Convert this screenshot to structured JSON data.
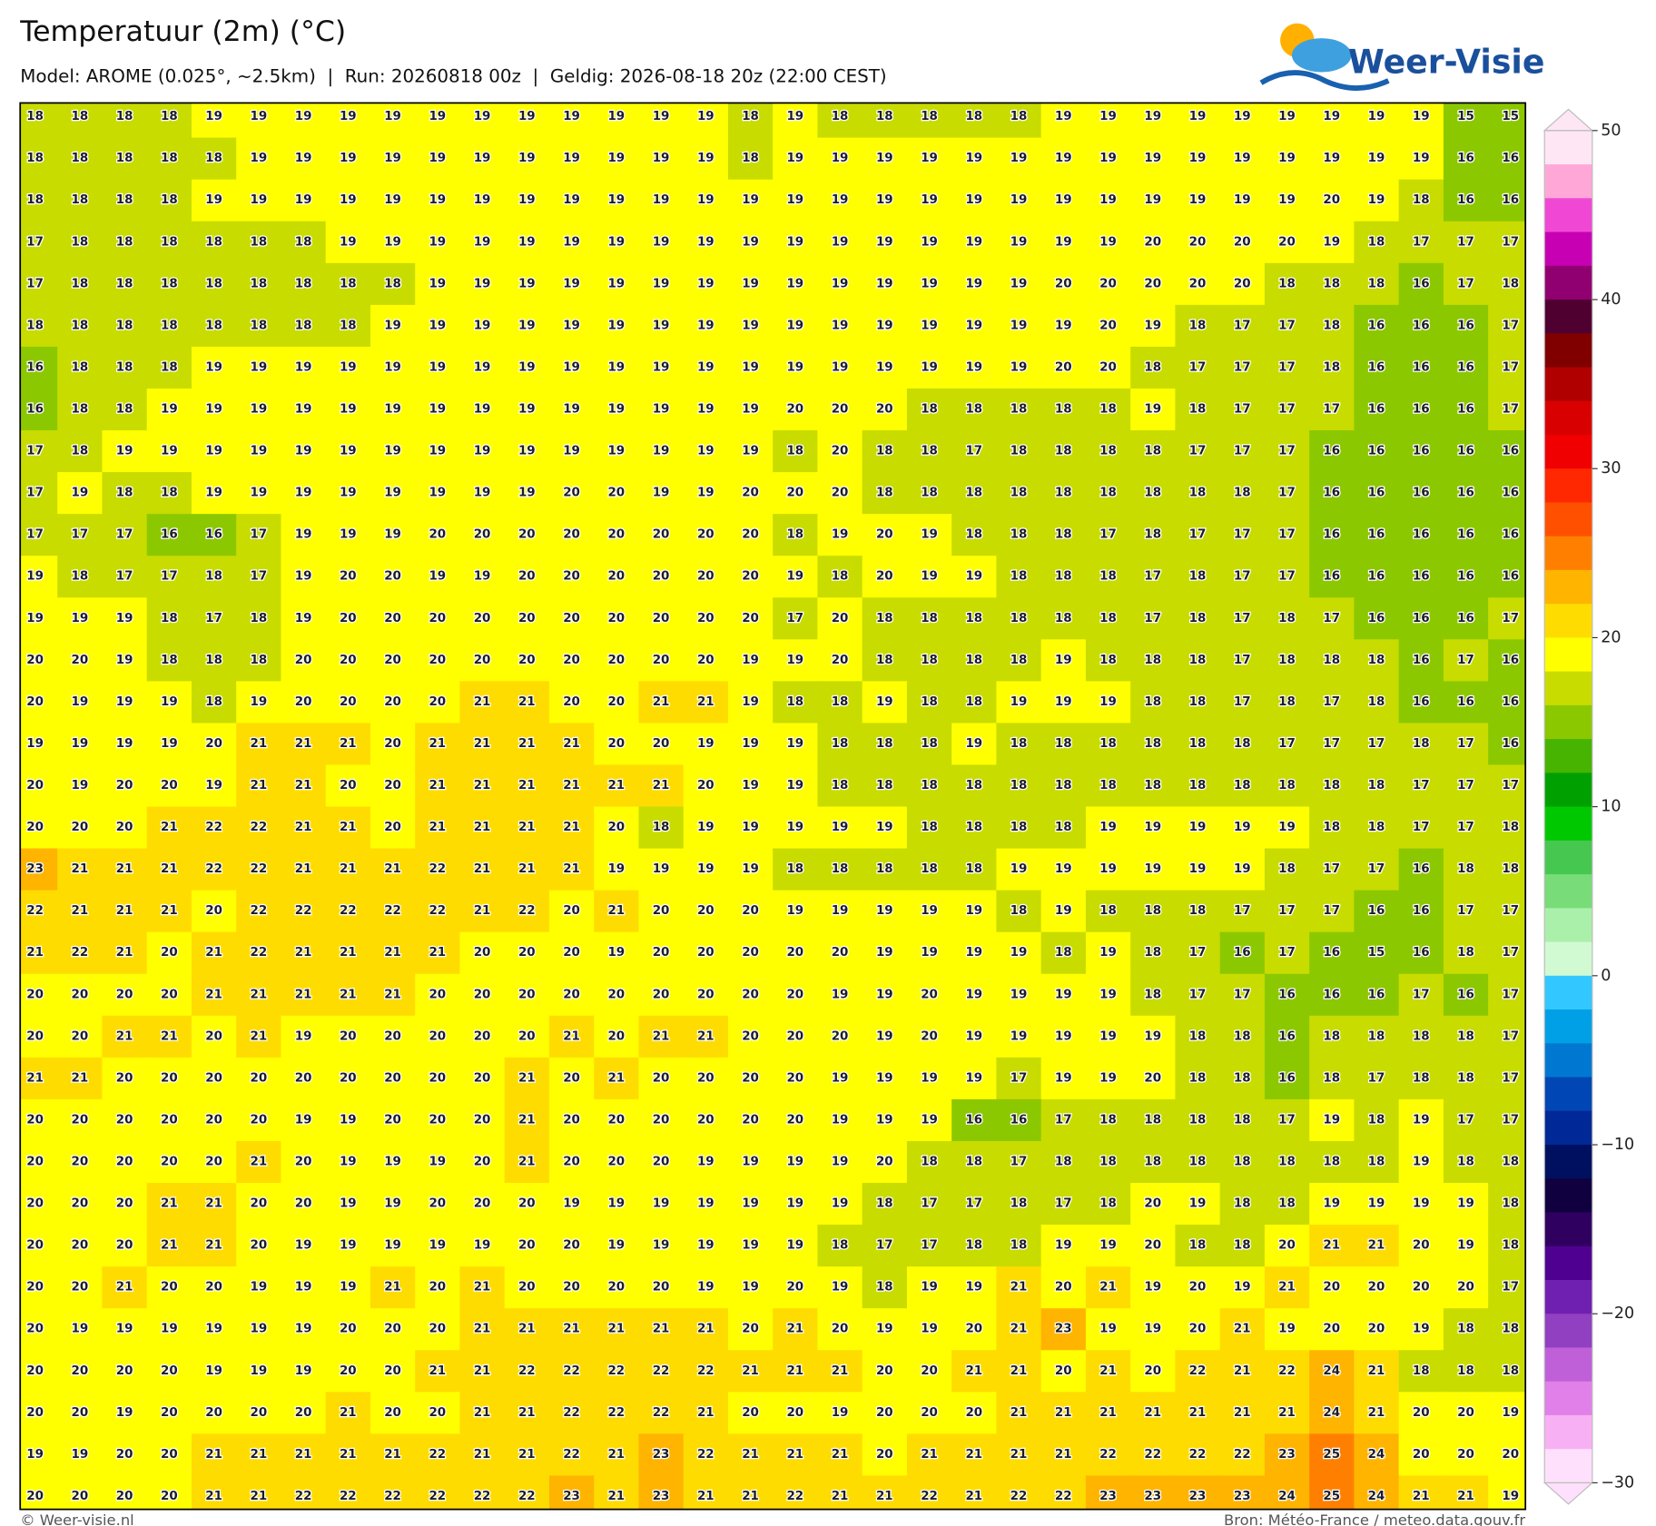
{
  "map": {
    "title": "Temperatuur (2m) (°C)",
    "subtitle": "Model: AROME (0.025°, ~2.5km)  |  Run: 20260818 00z  |  Geldig: 2026-08-18 20z (22:00 CEST)",
    "logo": "Weer-Visie",
    "footer_left": "© Weer-visie.nl",
    "footer_right": "Bron: Météo-France / meteo.data.gouv.fr",
    "grid": [
      [
        18,
        18,
        18,
        18,
        19,
        19,
        19,
        19,
        19,
        19,
        19,
        19,
        19,
        19,
        19,
        19,
        18,
        19,
        18,
        18,
        18,
        18,
        18,
        19,
        19,
        19,
        19,
        19,
        19,
        19,
        19,
        19,
        15,
        15
      ],
      [
        18,
        18,
        18,
        18,
        18,
        19,
        19,
        19,
        19,
        19,
        19,
        19,
        19,
        19,
        19,
        19,
        18,
        19,
        19,
        19,
        19,
        19,
        19,
        19,
        19,
        19,
        19,
        19,
        19,
        19,
        19,
        19,
        16,
        16
      ],
      [
        18,
        18,
        18,
        18,
        19,
        19,
        19,
        19,
        19,
        19,
        19,
        19,
        19,
        19,
        19,
        19,
        19,
        19,
        19,
        19,
        19,
        19,
        19,
        19,
        19,
        19,
        19,
        19,
        19,
        20,
        19,
        18,
        16,
        16
      ],
      [
        17,
        18,
        18,
        18,
        18,
        18,
        18,
        19,
        19,
        19,
        19,
        19,
        19,
        19,
        19,
        19,
        19,
        19,
        19,
        19,
        19,
        19,
        19,
        19,
        19,
        20,
        20,
        20,
        20,
        19,
        18,
        17,
        17,
        17
      ],
      [
        17,
        18,
        18,
        18,
        18,
        18,
        18,
        18,
        18,
        19,
        19,
        19,
        19,
        19,
        19,
        19,
        19,
        19,
        19,
        19,
        19,
        19,
        19,
        20,
        20,
        20,
        20,
        20,
        18,
        18,
        18,
        16,
        17,
        18
      ],
      [
        18,
        18,
        18,
        18,
        18,
        18,
        18,
        18,
        19,
        19,
        19,
        19,
        19,
        19,
        19,
        19,
        19,
        19,
        19,
        19,
        19,
        19,
        19,
        19,
        20,
        19,
        18,
        17,
        17,
        18,
        16,
        16,
        16,
        17
      ],
      [
        16,
        18,
        18,
        18,
        19,
        19,
        19,
        19,
        19,
        19,
        19,
        19,
        19,
        19,
        19,
        19,
        19,
        19,
        19,
        19,
        19,
        19,
        19,
        20,
        20,
        18,
        17,
        17,
        17,
        18,
        16,
        16,
        16,
        17
      ],
      [
        16,
        18,
        18,
        19,
        19,
        19,
        19,
        19,
        19,
        19,
        19,
        19,
        19,
        19,
        19,
        19,
        19,
        20,
        20,
        20,
        18,
        18,
        18,
        18,
        18,
        19,
        18,
        17,
        17,
        17,
        16,
        16,
        16,
        17
      ],
      [
        17,
        18,
        19,
        19,
        19,
        19,
        19,
        19,
        19,
        19,
        19,
        19,
        19,
        19,
        19,
        19,
        19,
        18,
        20,
        18,
        18,
        17,
        18,
        18,
        18,
        18,
        17,
        17,
        17,
        16,
        16,
        16,
        16,
        16
      ],
      [
        17,
        19,
        18,
        18,
        19,
        19,
        19,
        19,
        19,
        19,
        19,
        19,
        20,
        20,
        19,
        19,
        20,
        20,
        20,
        18,
        18,
        18,
        18,
        18,
        18,
        18,
        18,
        18,
        17,
        16,
        16,
        16,
        16,
        16
      ],
      [
        17,
        17,
        17,
        16,
        16,
        17,
        19,
        19,
        19,
        20,
        20,
        20,
        20,
        20,
        20,
        20,
        20,
        18,
        19,
        20,
        19,
        18,
        18,
        18,
        17,
        18,
        17,
        17,
        17,
        16,
        16,
        16,
        16,
        16
      ],
      [
        19,
        18,
        17,
        17,
        18,
        17,
        19,
        20,
        20,
        19,
        19,
        20,
        20,
        20,
        20,
        20,
        20,
        19,
        18,
        20,
        19,
        19,
        18,
        18,
        18,
        17,
        18,
        17,
        17,
        16,
        16,
        16,
        16,
        16
      ],
      [
        19,
        19,
        19,
        18,
        17,
        18,
        19,
        20,
        20,
        20,
        20,
        20,
        20,
        20,
        20,
        20,
        20,
        17,
        20,
        18,
        18,
        18,
        18,
        18,
        18,
        17,
        18,
        17,
        18,
        17,
        16,
        16,
        16,
        17
      ],
      [
        20,
        20,
        19,
        18,
        18,
        18,
        20,
        20,
        20,
        20,
        20,
        20,
        20,
        20,
        20,
        20,
        19,
        19,
        20,
        18,
        18,
        18,
        18,
        19,
        18,
        18,
        18,
        17,
        18,
        18,
        18,
        16,
        17,
        16
      ],
      [
        20,
        19,
        19,
        19,
        18,
        19,
        20,
        20,
        20,
        20,
        21,
        21,
        20,
        20,
        21,
        21,
        19,
        18,
        18,
        19,
        18,
        18,
        19,
        19,
        19,
        18,
        18,
        17,
        18,
        17,
        18,
        16,
        16,
        16
      ],
      [
        19,
        19,
        19,
        19,
        20,
        21,
        21,
        21,
        20,
        21,
        21,
        21,
        21,
        20,
        20,
        19,
        19,
        19,
        18,
        18,
        18,
        19,
        18,
        18,
        18,
        18,
        18,
        18,
        17,
        17,
        17,
        18,
        17,
        16
      ],
      [
        20,
        19,
        20,
        20,
        19,
        21,
        21,
        20,
        20,
        21,
        21,
        21,
        21,
        21,
        21,
        20,
        19,
        19,
        18,
        18,
        18,
        18,
        18,
        18,
        18,
        18,
        18,
        18,
        18,
        18,
        18,
        17,
        17,
        17
      ],
      [
        20,
        20,
        20,
        21,
        22,
        22,
        21,
        21,
        20,
        21,
        21,
        21,
        21,
        20,
        18,
        19,
        19,
        19,
        19,
        19,
        18,
        18,
        18,
        18,
        19,
        19,
        19,
        19,
        19,
        18,
        18,
        17,
        17,
        18
      ],
      [
        23,
        21,
        21,
        21,
        22,
        22,
        21,
        21,
        21,
        22,
        21,
        21,
        21,
        19,
        19,
        19,
        19,
        18,
        18,
        18,
        18,
        18,
        19,
        19,
        19,
        19,
        19,
        19,
        18,
        17,
        17,
        16,
        18,
        18
      ],
      [
        22,
        21,
        21,
        21,
        20,
        22,
        22,
        22,
        22,
        22,
        21,
        22,
        20,
        21,
        20,
        20,
        20,
        19,
        19,
        19,
        19,
        19,
        18,
        19,
        18,
        18,
        18,
        17,
        17,
        17,
        16,
        16,
        17,
        17
      ],
      [
        21,
        22,
        21,
        20,
        21,
        22,
        21,
        21,
        21,
        21,
        20,
        20,
        20,
        19,
        20,
        20,
        20,
        20,
        20,
        19,
        19,
        19,
        19,
        18,
        19,
        18,
        17,
        16,
        17,
        16,
        15,
        16,
        18,
        17
      ],
      [
        20,
        20,
        20,
        20,
        21,
        21,
        21,
        21,
        21,
        20,
        20,
        20,
        20,
        20,
        20,
        20,
        20,
        20,
        19,
        19,
        20,
        19,
        19,
        19,
        19,
        18,
        17,
        17,
        16,
        16,
        16,
        17,
        16,
        17
      ],
      [
        20,
        20,
        21,
        21,
        20,
        21,
        19,
        20,
        20,
        20,
        20,
        20,
        21,
        20,
        21,
        21,
        20,
        20,
        20,
        19,
        20,
        19,
        19,
        19,
        19,
        19,
        18,
        18,
        16,
        18,
        18,
        18,
        18,
        17
      ],
      [
        21,
        21,
        20,
        20,
        20,
        20,
        20,
        20,
        20,
        20,
        20,
        21,
        20,
        21,
        20,
        20,
        20,
        20,
        19,
        19,
        19,
        19,
        17,
        19,
        19,
        20,
        18,
        18,
        16,
        18,
        17,
        18,
        18,
        17
      ],
      [
        20,
        20,
        20,
        20,
        20,
        20,
        19,
        19,
        20,
        20,
        20,
        21,
        20,
        20,
        20,
        20,
        20,
        20,
        19,
        19,
        19,
        16,
        16,
        17,
        18,
        18,
        18,
        18,
        17,
        19,
        18,
        19,
        17,
        17
      ],
      [
        20,
        20,
        20,
        20,
        20,
        21,
        20,
        19,
        19,
        19,
        20,
        21,
        20,
        20,
        20,
        19,
        19,
        19,
        19,
        20,
        18,
        18,
        17,
        18,
        18,
        18,
        18,
        18,
        18,
        18,
        18,
        19,
        18,
        18
      ],
      [
        20,
        20,
        20,
        21,
        21,
        20,
        20,
        19,
        19,
        20,
        20,
        20,
        19,
        19,
        19,
        19,
        19,
        19,
        19,
        18,
        17,
        17,
        18,
        17,
        18,
        20,
        19,
        18,
        18,
        19,
        19,
        19,
        19,
        18
      ],
      [
        20,
        20,
        20,
        21,
        21,
        20,
        19,
        19,
        19,
        19,
        19,
        20,
        20,
        19,
        19,
        19,
        19,
        19,
        18,
        17,
        17,
        18,
        18,
        19,
        19,
        20,
        18,
        18,
        20,
        21,
        21,
        20,
        19,
        18
      ],
      [
        20,
        20,
        21,
        20,
        20,
        19,
        19,
        19,
        21,
        20,
        21,
        20,
        20,
        20,
        20,
        19,
        19,
        20,
        19,
        18,
        19,
        19,
        21,
        20,
        21,
        19,
        20,
        19,
        21,
        20,
        20,
        20,
        20,
        17
      ],
      [
        20,
        19,
        19,
        19,
        19,
        19,
        19,
        20,
        20,
        20,
        21,
        21,
        21,
        21,
        21,
        21,
        20,
        21,
        20,
        19,
        19,
        20,
        21,
        23,
        19,
        19,
        20,
        21,
        19,
        20,
        20,
        19,
        18,
        18
      ],
      [
        20,
        20,
        20,
        20,
        19,
        19,
        19,
        20,
        20,
        21,
        21,
        22,
        22,
        22,
        22,
        22,
        21,
        21,
        21,
        20,
        20,
        21,
        21,
        20,
        21,
        20,
        22,
        21,
        22,
        24,
        21,
        18,
        18,
        18
      ],
      [
        20,
        20,
        19,
        20,
        20,
        20,
        20,
        21,
        20,
        20,
        21,
        21,
        22,
        22,
        22,
        21,
        20,
        20,
        19,
        20,
        20,
        20,
        21,
        21,
        21,
        21,
        21,
        21,
        21,
        24,
        21,
        20,
        20,
        19
      ],
      [
        19,
        19,
        20,
        20,
        21,
        21,
        21,
        21,
        21,
        22,
        21,
        21,
        22,
        21,
        23,
        22,
        21,
        21,
        21,
        20,
        21,
        21,
        21,
        21,
        22,
        22,
        22,
        22,
        23,
        25,
        24,
        20,
        20,
        20
      ],
      [
        20,
        20,
        20,
        20,
        21,
        21,
        22,
        22,
        22,
        22,
        22,
        22,
        23,
        21,
        23,
        21,
        21,
        22,
        21,
        21,
        22,
        21,
        22,
        22,
        23,
        23,
        23,
        23,
        24,
        25,
        24,
        21,
        21,
        19
      ]
    ],
    "colorbar": {
      "lim": [
        -30,
        50
      ],
      "ticks": [
        50,
        40,
        30,
        20,
        10,
        0,
        {
          "value": -10,
          "label": "−10"
        },
        {
          "value": -20,
          "label": "−20"
        },
        {
          "value": -30,
          "label": "−30"
        }
      ],
      "colors": [
        "#ffe6f5",
        "#ffa8d8",
        "#f048d4",
        "#c800b4",
        "#900070",
        "#500030",
        "#800000",
        "#b00000",
        "#d80000",
        "#f00000",
        "#ff2800",
        "#ff5000",
        "#ff8000",
        "#ffb400",
        "#ffdc00",
        "#ffff00",
        "#c8dc00",
        "#8cc800",
        "#46b400",
        "#00a000",
        "#00c800",
        "#46c850",
        "#78dc78",
        "#aaf0aa",
        "#d2fad2",
        "#32c8ff",
        "#00a0e6",
        "#0078d2",
        "#0046b4",
        "#002896",
        "#001060",
        "#100040",
        "#300060",
        "#500090",
        "#7020b0",
        "#9040c0",
        "#c060d8",
        "#e080e8",
        "#f8b0f4",
        "#ffe0fc"
      ]
    }
  }
}
